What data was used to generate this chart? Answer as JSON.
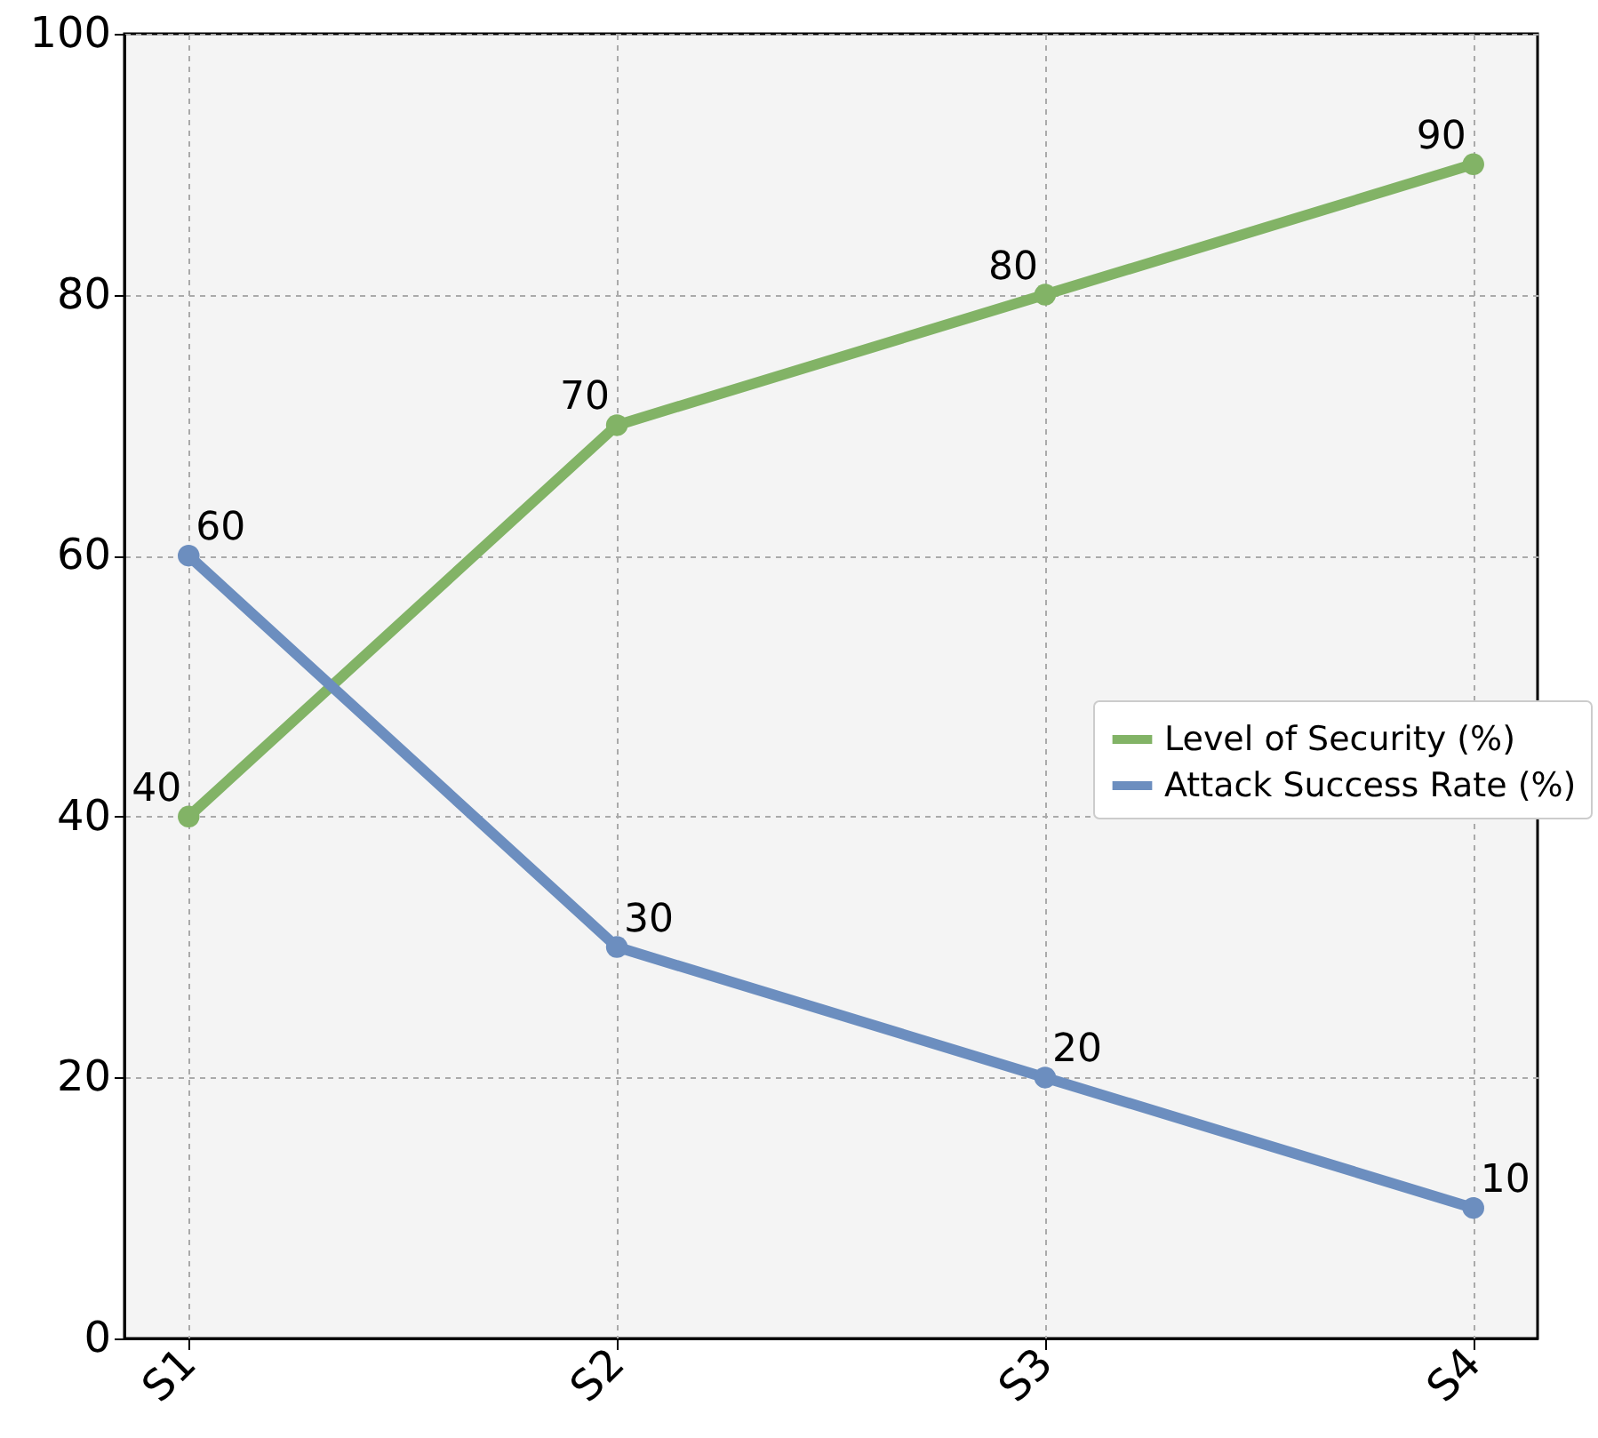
{
  "chart_data": {
    "type": "line",
    "categories": [
      "S1",
      "S2",
      "S3",
      "S4"
    ],
    "series": [
      {
        "name": "Level of Security (%)",
        "color": "#82b366",
        "values": [
          40,
          70,
          80,
          90
        ]
      },
      {
        "name": "Attack Success Rate (%)",
        "color": "#6c8ebf",
        "values": [
          60,
          30,
          20,
          10
        ]
      }
    ],
    "ylim": [
      0,
      100
    ],
    "yticks": [
      0,
      20,
      40,
      60,
      80,
      100
    ],
    "grid": true,
    "legend": "right",
    "marker": "circle",
    "line_style": "solid",
    "data_labels": true
  }
}
